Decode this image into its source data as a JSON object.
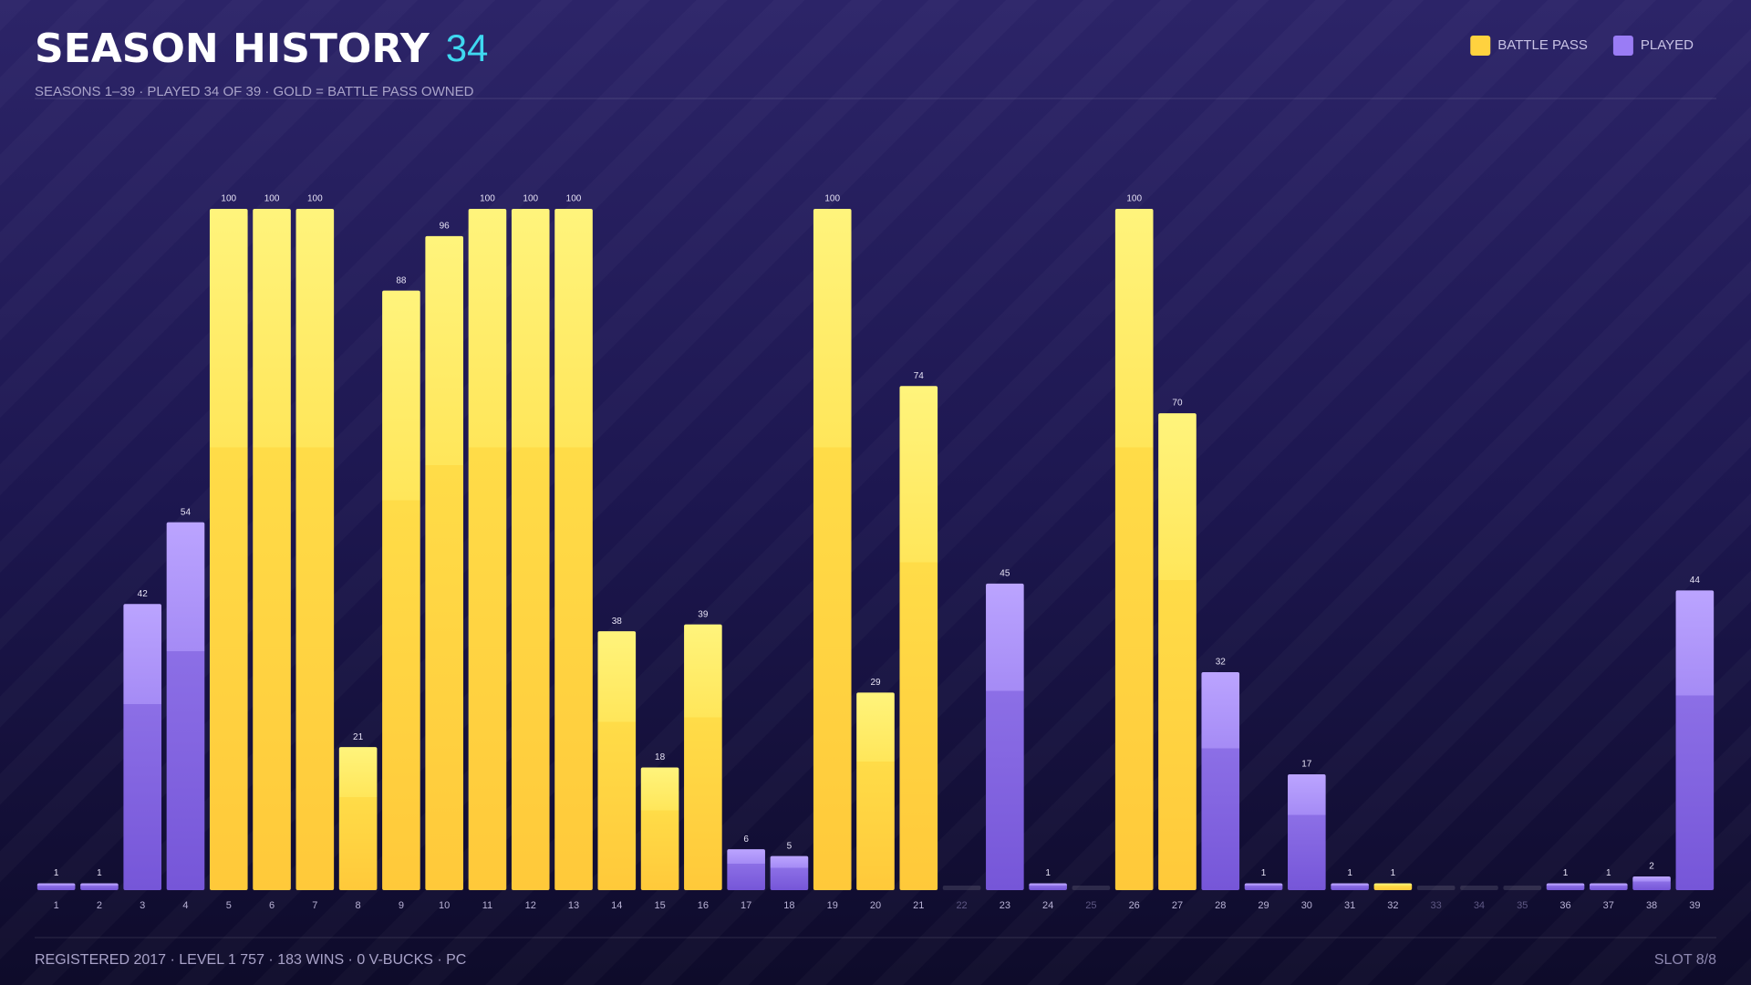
{
  "chart_data": {
    "type": "bar",
    "title": "SEASON HISTORY",
    "title_badge": "34",
    "subtitle": "SEASONS 1–39 · PLAYED 34 OF 39 · GOLD = BATTLE PASS OWNED",
    "categories": [
      "1",
      "2",
      "3",
      "4",
      "5",
      "6",
      "7",
      "8",
      "9",
      "10",
      "11",
      "12",
      "13",
      "14",
      "15",
      "16",
      "17",
      "18",
      "19",
      "20",
      "21",
      "22",
      "23",
      "24",
      "25",
      "26",
      "27",
      "28",
      "29",
      "30",
      "31",
      "32",
      "33",
      "34",
      "35",
      "36",
      "37",
      "38",
      "39"
    ],
    "series": [
      {
        "name": "BATTLE PASS",
        "color": "#ffd23f",
        "values": [
          null,
          null,
          null,
          null,
          100,
          100,
          100,
          21,
          88,
          96,
          100,
          100,
          100,
          38,
          18,
          39,
          null,
          null,
          100,
          29,
          74,
          null,
          null,
          null,
          null,
          100,
          70,
          null,
          null,
          null,
          null,
          1,
          null,
          null,
          null,
          null,
          null,
          null,
          null
        ]
      },
      {
        "name": "PLAYED",
        "color": "#9a7cf5",
        "values": [
          1,
          1,
          42,
          54,
          null,
          null,
          null,
          null,
          null,
          null,
          null,
          null,
          null,
          null,
          null,
          null,
          6,
          5,
          null,
          null,
          null,
          null,
          45,
          1,
          null,
          null,
          null,
          32,
          1,
          17,
          1,
          null,
          null,
          null,
          null,
          1,
          1,
          2,
          44
        ]
      }
    ],
    "ylim": [
      0,
      100
    ],
    "legend": "top-right"
  },
  "footer": {
    "left": "REGISTERED 2017 · LEVEL 1 757 · 183 WINS · 0 V-BUCKS · PC",
    "right": "SLOT 8/8"
  }
}
